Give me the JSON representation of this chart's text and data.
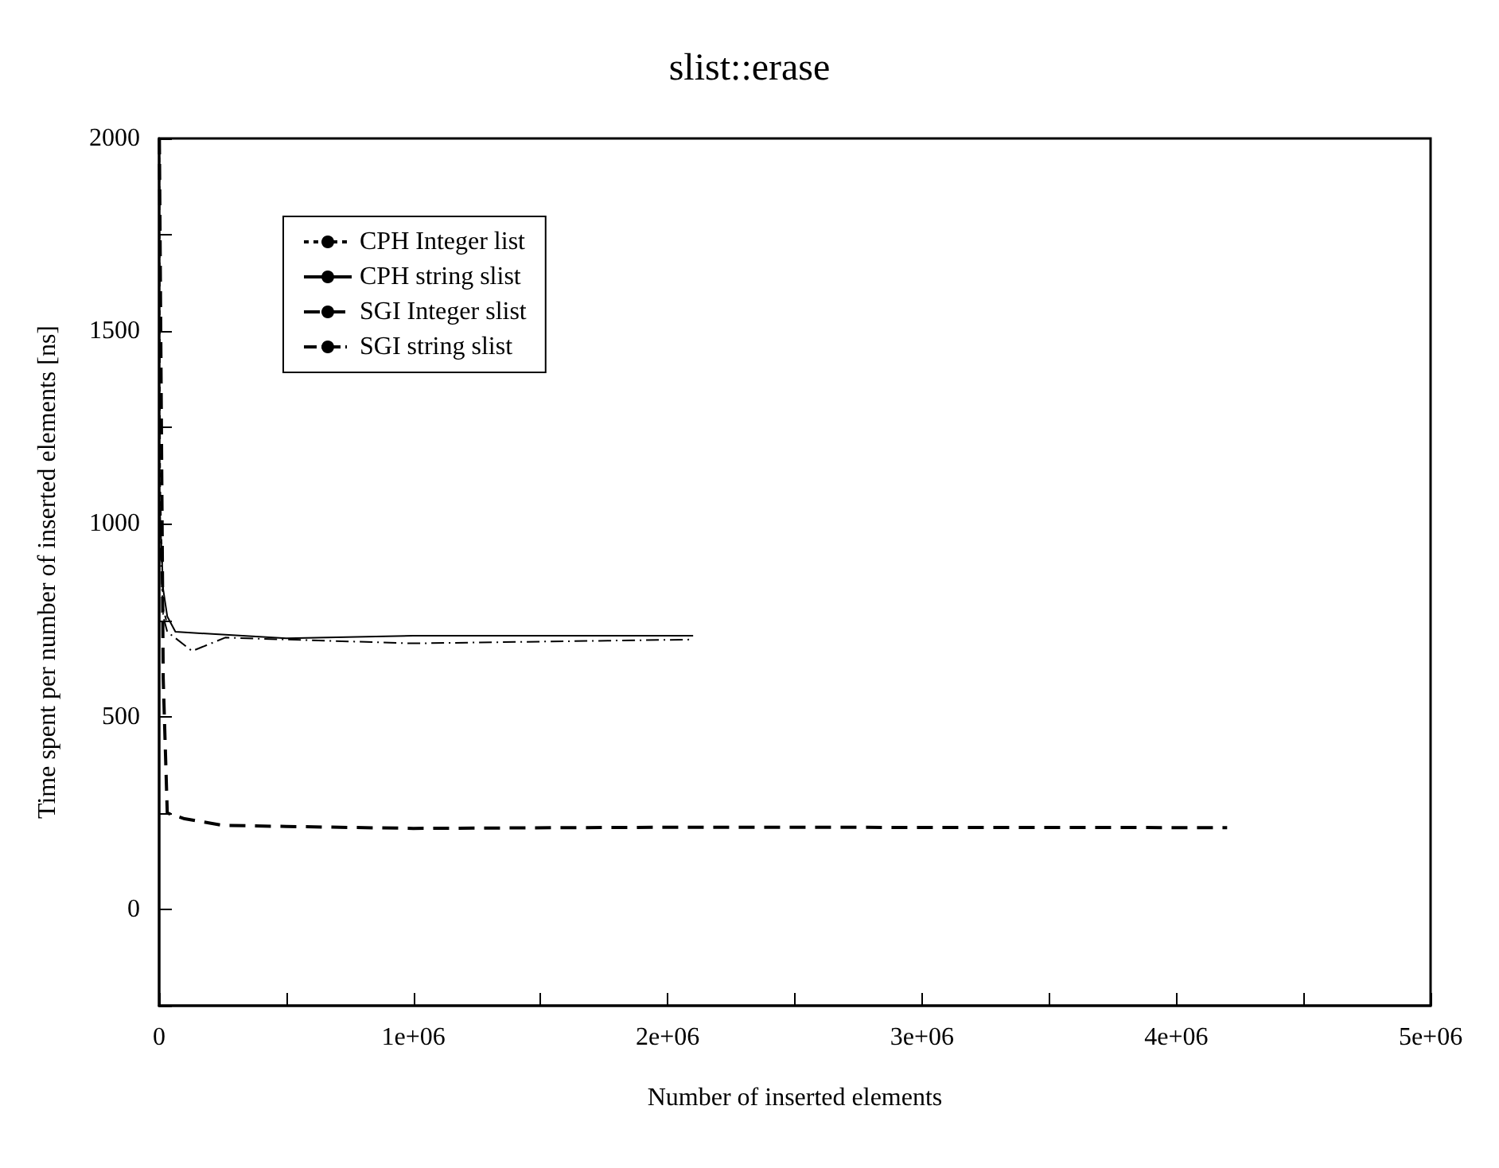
{
  "chart_data": {
    "type": "line",
    "title": "slist::erase",
    "xlabel": "Number of inserted elements",
    "ylabel": "Time spent per number of inserted elements [ns]",
    "xlim": [
      0,
      5000000
    ],
    "ylim": [
      -250,
      2000
    ],
    "xticks": [
      {
        "value": 0,
        "label": "0"
      },
      {
        "value": 500000,
        "label": null
      },
      {
        "value": 1000000,
        "label": "1e+06"
      },
      {
        "value": 1500000,
        "label": null
      },
      {
        "value": 2000000,
        "label": "2e+06"
      },
      {
        "value": 2500000,
        "label": null
      },
      {
        "value": 3000000,
        "label": "3e+06"
      },
      {
        "value": 3500000,
        "label": null
      },
      {
        "value": 4000000,
        "label": "4e+06"
      },
      {
        "value": 4500000,
        "label": null
      },
      {
        "value": 5000000,
        "label": "5e+06"
      }
    ],
    "yticks": [
      {
        "value": -250,
        "label": null
      },
      0,
      {
        "value": 250,
        "label": null
      },
      500,
      {
        "value": 750,
        "label": null
      },
      1000,
      {
        "value": 1250,
        "label": null
      },
      1500,
      {
        "value": 1750,
        "label": null
      },
      2000
    ],
    "grid": false,
    "legend": "top left",
    "marker": "none",
    "series": [
      {
        "name": "CPH Integer list",
        "color": "#000000",
        "line_style": "dotted",
        "x": [
          1000,
          4000,
          16000,
          32000
        ],
        "values": [
          2000,
          1100,
          780,
          740
        ]
      },
      {
        "name": "CPH string slist",
        "color": "#000000",
        "line_style": "solid",
        "x": [
          2000,
          16000,
          32000,
          64000,
          500000,
          1000000,
          2100000
        ],
        "values": [
          1050,
          830,
          760,
          720,
          703,
          710,
          710
        ]
      },
      {
        "name": "SGI Integer slist",
        "color": "#000000",
        "line_style": "dashed",
        "x": [
          1000,
          16000,
          32000,
          100000,
          250000,
          500000,
          1000000,
          2000000,
          4200000
        ],
        "values": [
          2000,
          600,
          250,
          235,
          218,
          215,
          210,
          213,
          212
        ]
      },
      {
        "name": "SGI string slist",
        "color": "#000000",
        "line_style": "dashdot",
        "x": [
          1000,
          16000,
          32000,
          130000,
          260000,
          500000,
          1000000,
          2100000
        ],
        "values": [
          1000,
          760,
          720,
          670,
          705,
          700,
          690,
          700
        ]
      }
    ]
  }
}
